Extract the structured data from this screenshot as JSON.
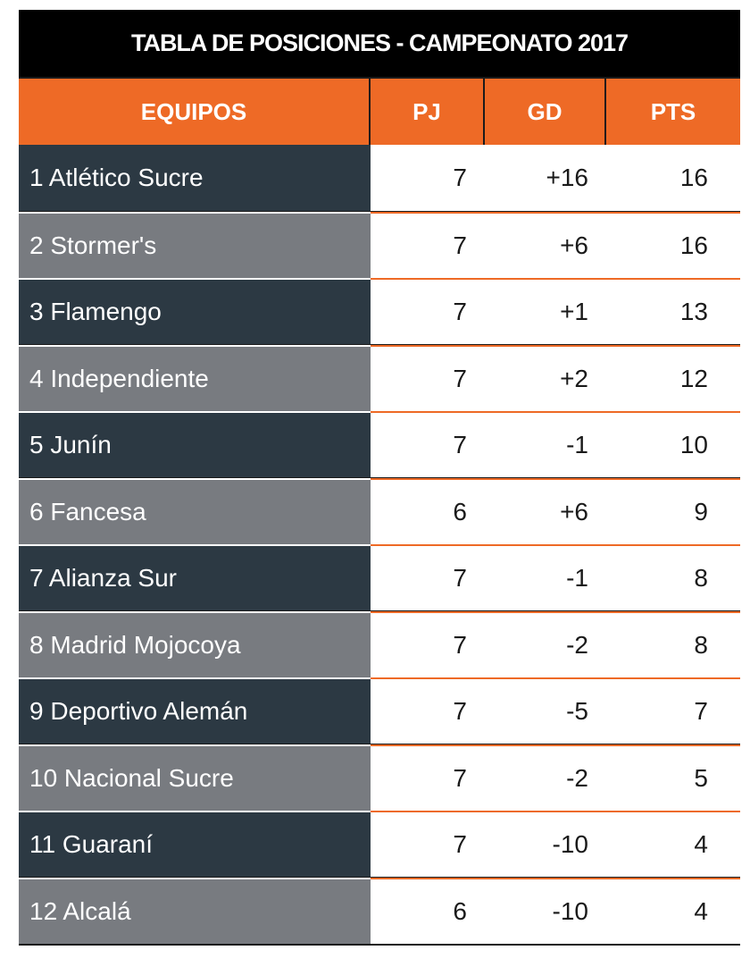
{
  "chart_data": {
    "type": "table",
    "title": "TABLA DE POSICIONES - CAMPEONATO 2017",
    "columns": [
      "EQUIPOS",
      "PJ",
      "GD",
      "PTS"
    ],
    "rows": [
      {
        "team": "1 Atlético Sucre",
        "pj": "7",
        "gd": "+16",
        "pts": "16"
      },
      {
        "team": "2 Stormer's",
        "pj": "7",
        "gd": "+6",
        "pts": "16"
      },
      {
        "team": "3 Flamengo",
        "pj": "7",
        "gd": "+1",
        "pts": "13"
      },
      {
        "team": "4 Independiente",
        "pj": "7",
        "gd": "+2",
        "pts": "12"
      },
      {
        "team": "5 Junín",
        "pj": "7",
        "gd": "-1",
        "pts": "10"
      },
      {
        "team": "6 Fancesa",
        "pj": "6",
        "gd": "+6",
        "pts": "9"
      },
      {
        "team": "7 Alianza Sur",
        "pj": "7",
        "gd": "-1",
        "pts": "8"
      },
      {
        "team": "8 Madrid Mojocoya",
        "pj": "7",
        "gd": "-2",
        "pts": "8"
      },
      {
        "team": "9 Deportivo Alemán",
        "pj": "7",
        "gd": "-5",
        "pts": "7"
      },
      {
        "team": "10 Nacional Sucre",
        "pj": "7",
        "gd": "-2",
        "pts": "5"
      },
      {
        "team": "11 Guaraní",
        "pj": "7",
        "gd": "-10",
        "pts": "4"
      },
      {
        "team": "12 Alcalá",
        "pj": "6",
        "gd": "-10",
        "pts": "4"
      }
    ]
  },
  "colors": {
    "title_bg": "#000000",
    "header_bg": "#ee6a26",
    "row_dark": "#2c3943",
    "row_light": "#787b80",
    "cell_bg": "#ffffff",
    "divider": "#ee6a26"
  }
}
